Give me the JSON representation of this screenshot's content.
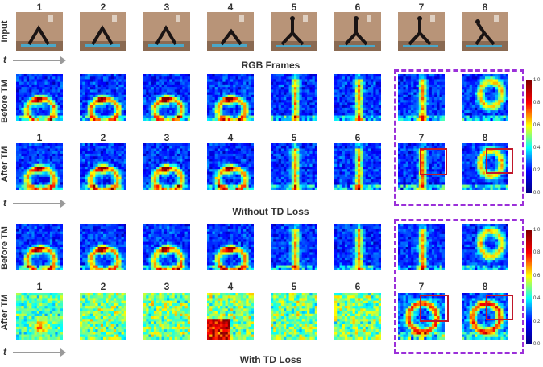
{
  "frame_numbers": [
    "1",
    "2",
    "3",
    "4",
    "5",
    "6",
    "7",
    "8"
  ],
  "row_labels": {
    "input": "Input",
    "before_tm": "Before TM",
    "after_tm": "After TM"
  },
  "time_axis_label": "t",
  "captions": {
    "rgb": "RGB Frames",
    "without": "Without TD Loss",
    "with": "With TD Loss"
  },
  "colorbar_ticks": [
    "1.0",
    "0.8",
    "0.6",
    "0.4",
    "0.2",
    "0.0"
  ],
  "colors": {
    "dashed_box": "#9b30d9",
    "highlight_box": "#c0182b",
    "arrow": "#9a9a9a"
  },
  "icons": [
    "yoga-frame-image",
    "heatmap-image",
    "time-arrow-icon",
    "colorbar-icon"
  ]
}
